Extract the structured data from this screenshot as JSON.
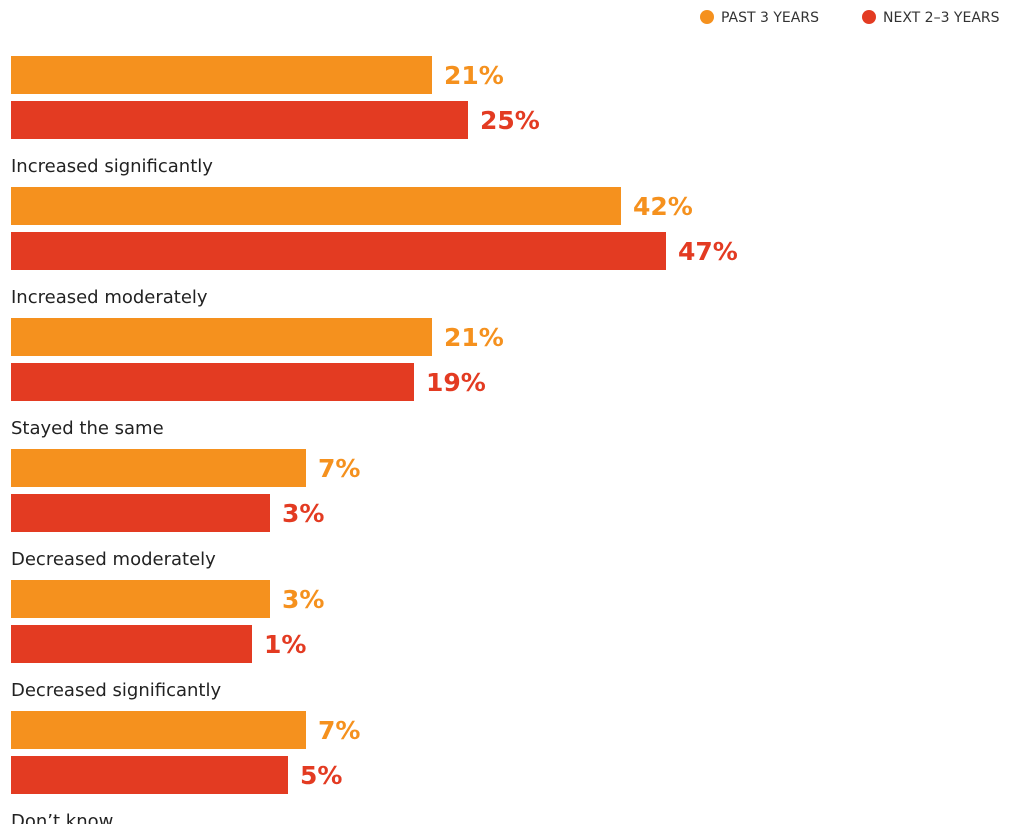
{
  "chart_data": {
    "type": "bar",
    "orientation": "horizontal",
    "categories": [
      "Increased significantly",
      "Increased moderately",
      "Stayed the same",
      "Decreased moderately",
      "Decreased significantly",
      "Don’t know"
    ],
    "series": [
      {
        "name": "PAST 3 YEARS",
        "values": [
          21,
          42,
          21,
          7,
          3,
          7
        ],
        "labels": [
          "21%",
          "42%",
          "21%",
          "7%",
          "3%",
          "7%"
        ],
        "color": "#F5911E"
      },
      {
        "name": "NEXT 2–3 YEARS",
        "values": [
          25,
          47,
          19,
          3,
          1,
          5
        ],
        "labels": [
          "25%",
          "47%",
          "19%",
          "3%",
          "1%",
          "5%"
        ],
        "color": "#E33B22"
      }
    ],
    "legend_position": "top-right",
    "grid": false,
    "xlim": [
      0,
      47
    ]
  }
}
